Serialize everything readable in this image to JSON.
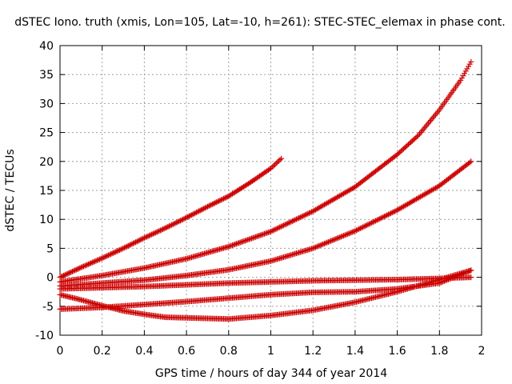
{
  "chart_data": {
    "type": "scatter",
    "title": "dSTEC Iono. truth (xmis, Lon=105, Lat=-10, h=261): STEC-STEC_elemax in phase cont.",
    "xlabel": "GPS time / hours of day 344 of year 2014",
    "ylabel": "dSTEC  / TECUs",
    "xlim": [
      0,
      2
    ],
    "ylim": [
      -10,
      40
    ],
    "xticks": [
      0,
      0.2,
      0.4,
      0.6,
      0.8,
      1,
      1.2,
      1.4,
      1.6,
      1.8,
      2
    ],
    "xtick_labels": [
      "0",
      "0.2",
      "0.4",
      "0.6",
      "0.8",
      "1",
      "1.2",
      "1.4",
      "1.6",
      "1.8",
      "2"
    ],
    "yticks": [
      -10,
      -5,
      0,
      5,
      10,
      15,
      20,
      25,
      30,
      35,
      40
    ],
    "ytick_labels": [
      "-10",
      "-5",
      "0",
      "5",
      "10",
      "15",
      "20",
      "25",
      "30",
      "35",
      "40"
    ],
    "grid": true,
    "marker": "+",
    "marker_color": "#cc0000",
    "series": [
      {
        "name": "series-1",
        "x": [
          0.0,
          0.1,
          0.2,
          0.3,
          0.4,
          0.5,
          0.6,
          0.7,
          0.8,
          0.9,
          1.0,
          1.05
        ],
        "y": [
          0.0,
          1.7,
          3.3,
          5.0,
          6.8,
          8.5,
          10.3,
          12.2,
          14.0,
          16.3,
          18.8,
          20.5
        ]
      },
      {
        "name": "series-2",
        "x": [
          0.0,
          0.2,
          0.4,
          0.6,
          0.8,
          1.0,
          1.2,
          1.4,
          1.6,
          1.7,
          1.8,
          1.9,
          1.95
        ],
        "y": [
          -0.8,
          0.3,
          1.6,
          3.2,
          5.3,
          7.9,
          11.4,
          15.6,
          21.2,
          24.5,
          28.9,
          34.0,
          37.2
        ]
      },
      {
        "name": "series-3",
        "x": [
          0.0,
          0.2,
          0.4,
          0.6,
          0.8,
          1.0,
          1.2,
          1.4,
          1.6,
          1.8,
          1.95
        ],
        "y": [
          -1.5,
          -1.0,
          -0.5,
          0.3,
          1.3,
          2.8,
          5.0,
          8.0,
          11.6,
          15.8,
          20.0
        ]
      },
      {
        "name": "series-4",
        "x": [
          0.0,
          0.2,
          0.4,
          0.6,
          0.8,
          1.0,
          1.2,
          1.4,
          1.6,
          1.8,
          1.95
        ],
        "y": [
          -2.0,
          -1.8,
          -1.6,
          -1.3,
          -1.0,
          -0.8,
          -0.6,
          -0.5,
          -0.4,
          -0.2,
          0.0
        ]
      },
      {
        "name": "series-5",
        "x": [
          0.0,
          0.2,
          0.4,
          0.6,
          0.8,
          1.0,
          1.2,
          1.4,
          1.6,
          1.8,
          1.95
        ],
        "y": [
          -5.5,
          -5.2,
          -4.7,
          -4.2,
          -3.6,
          -3.0,
          -2.6,
          -2.5,
          -2.0,
          -1.0,
          1.2
        ]
      },
      {
        "name": "series-6",
        "x": [
          0.0,
          0.1,
          0.2,
          0.3,
          0.4,
          0.5,
          0.6,
          0.7,
          0.8,
          1.0,
          1.2,
          1.4,
          1.6,
          1.8,
          1.95
        ],
        "y": [
          -3.0,
          -3.9,
          -4.9,
          -5.8,
          -6.4,
          -6.9,
          -7.0,
          -7.1,
          -7.2,
          -6.6,
          -5.7,
          -4.3,
          -2.5,
          -0.4,
          1.2
        ]
      }
    ]
  }
}
